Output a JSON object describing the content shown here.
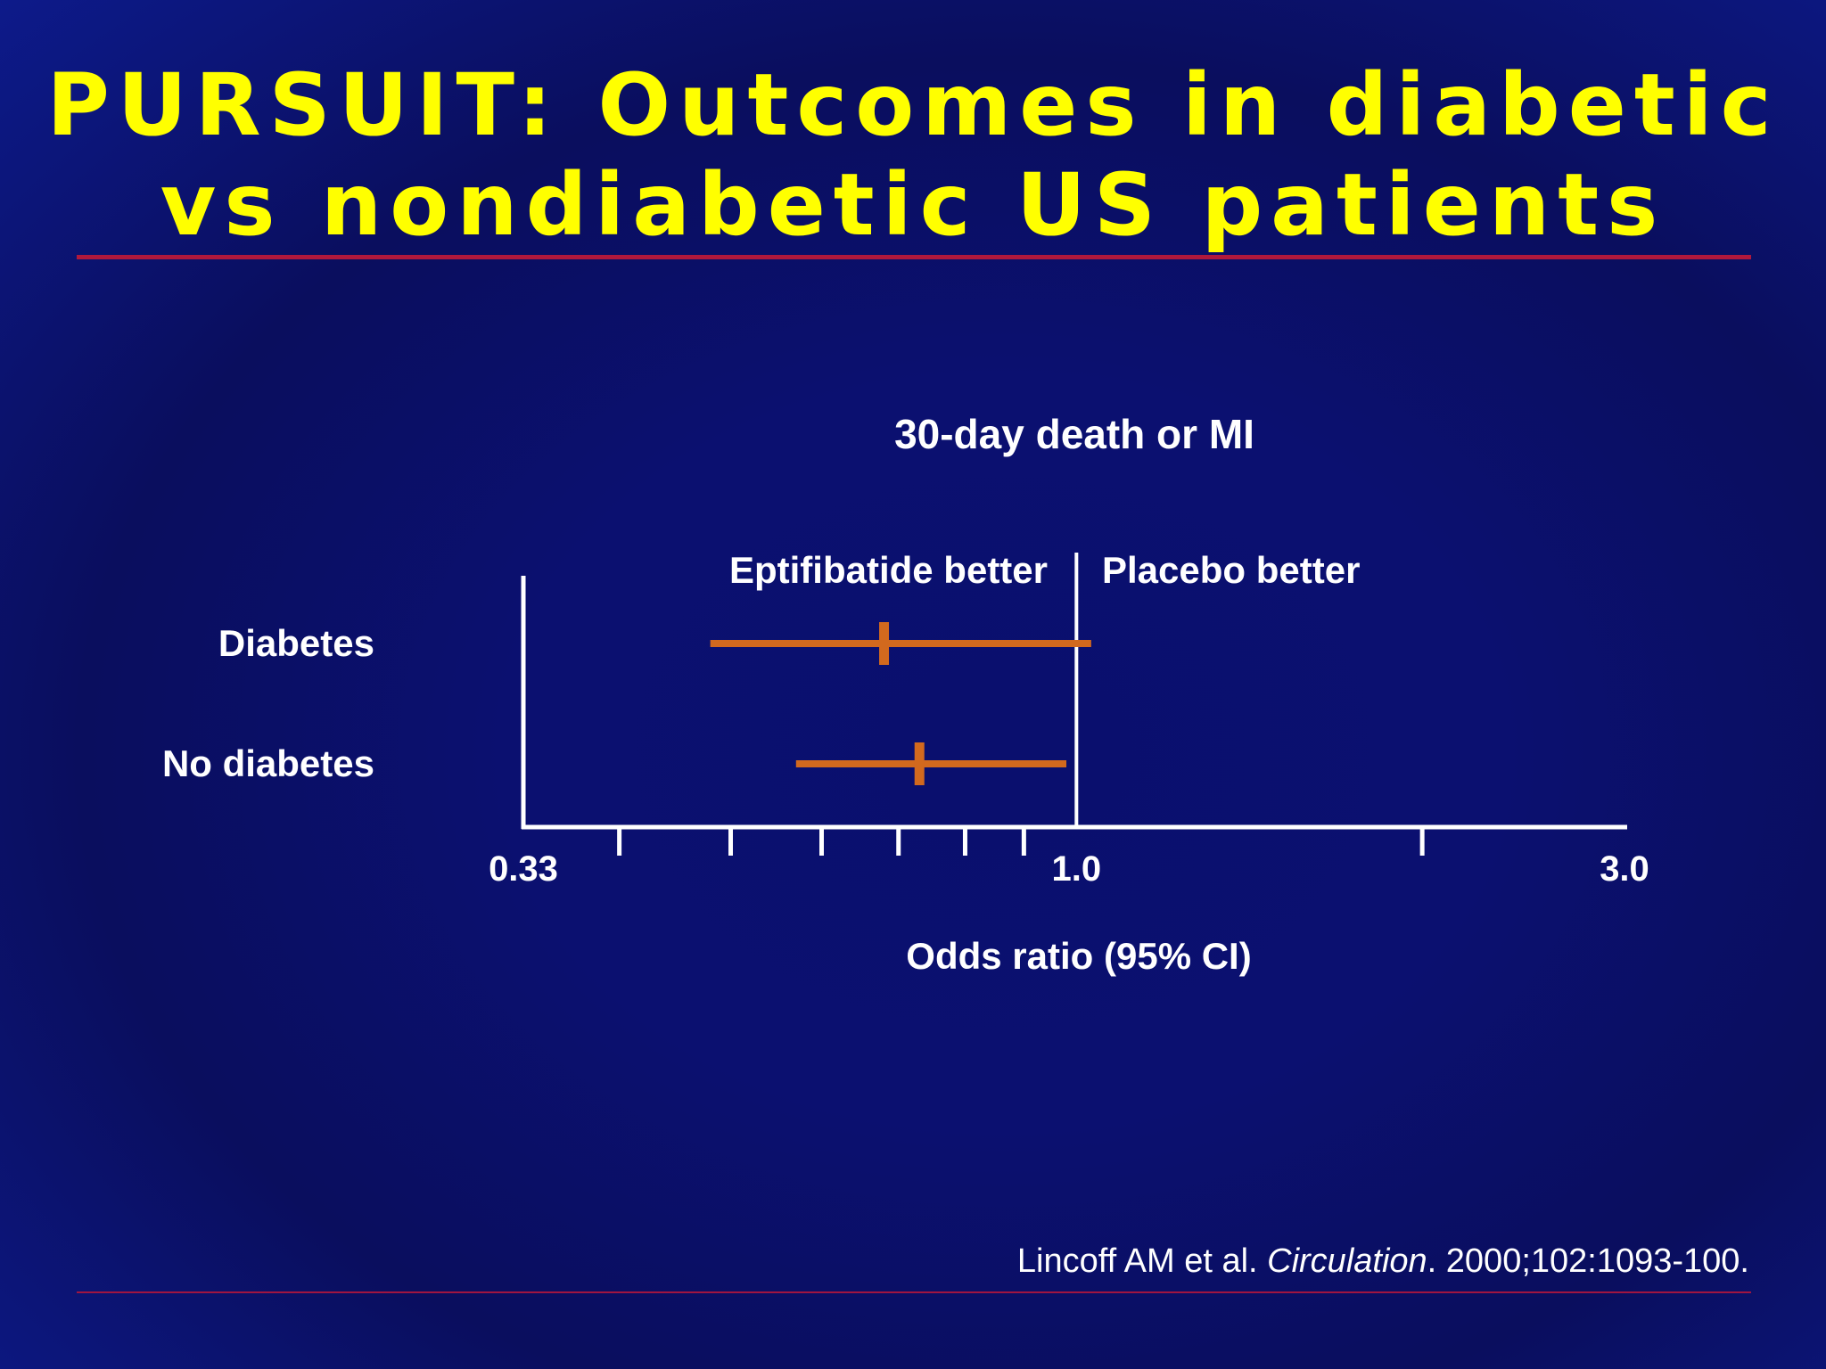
{
  "slide": {
    "title_line1": "PURSUIT: Outcomes in diabetic",
    "title_line2": "vs nondiabetic US patients",
    "citation_authors": "Lincoff AM et al. ",
    "citation_journal": "Circulation",
    "citation_details": ". 2000;102:1093-100."
  },
  "colors": {
    "title": "#ffff00",
    "rule": "#b0183c",
    "ci_line": "#d2691e",
    "axis": "#ffffff"
  },
  "chart_data": {
    "type": "forest",
    "title": "30-day death or MI",
    "xlabel": "Odds ratio (95% CI)",
    "x_scale": "log",
    "xlim": [
      0.33,
      3.0
    ],
    "reference_value": 1.0,
    "tick_values": [
      0.33,
      0.4,
      0.5,
      0.6,
      0.7,
      0.8,
      0.9,
      1.0,
      2.0,
      3.0
    ],
    "tick_labels": [
      {
        "value": 0.33,
        "label": "0.33"
      },
      {
        "value": 1.0,
        "label": "1.0"
      },
      {
        "value": 3.0,
        "label": "3.0"
      }
    ],
    "favors_left": "Eptifibatide better",
    "favors_right": "Placebo better",
    "rows": [
      {
        "label": "Diabetes",
        "estimate": 0.68,
        "ci_low": 0.48,
        "ci_high": 1.03
      },
      {
        "label": "No diabetes",
        "estimate": 0.73,
        "ci_low": 0.57,
        "ci_high": 0.98
      }
    ]
  }
}
